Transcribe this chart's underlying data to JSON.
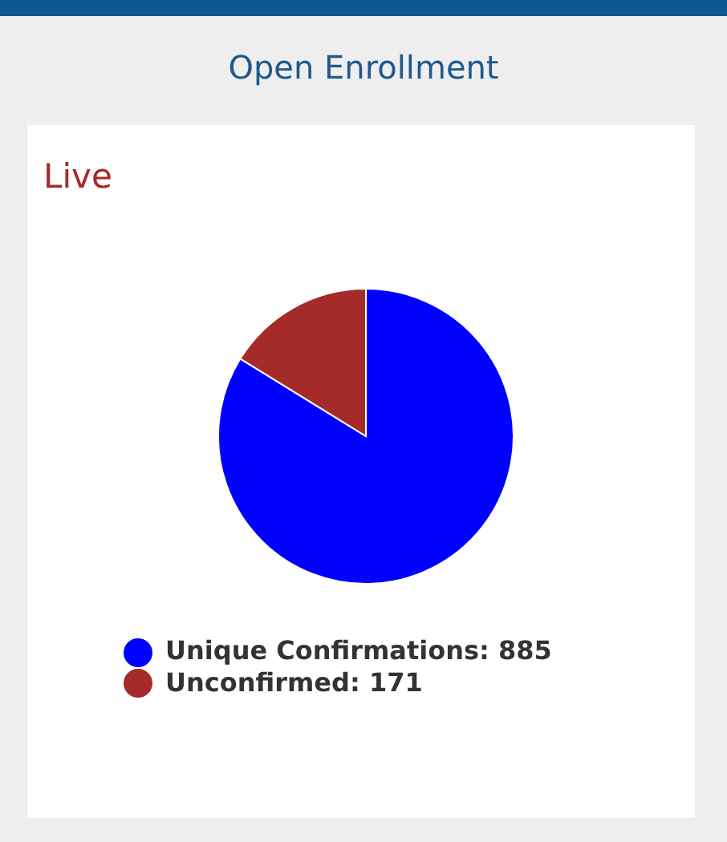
{
  "chart_data": {
    "type": "pie",
    "title": "Open Enrollment",
    "subtitle": "Live",
    "categories": [
      "Unique Confirmations: 885",
      "Unconfirmed: 171"
    ],
    "values": [
      885,
      171
    ],
    "colors": [
      "#0000ff",
      "#a52a2a"
    ],
    "legend": "bottom"
  }
}
